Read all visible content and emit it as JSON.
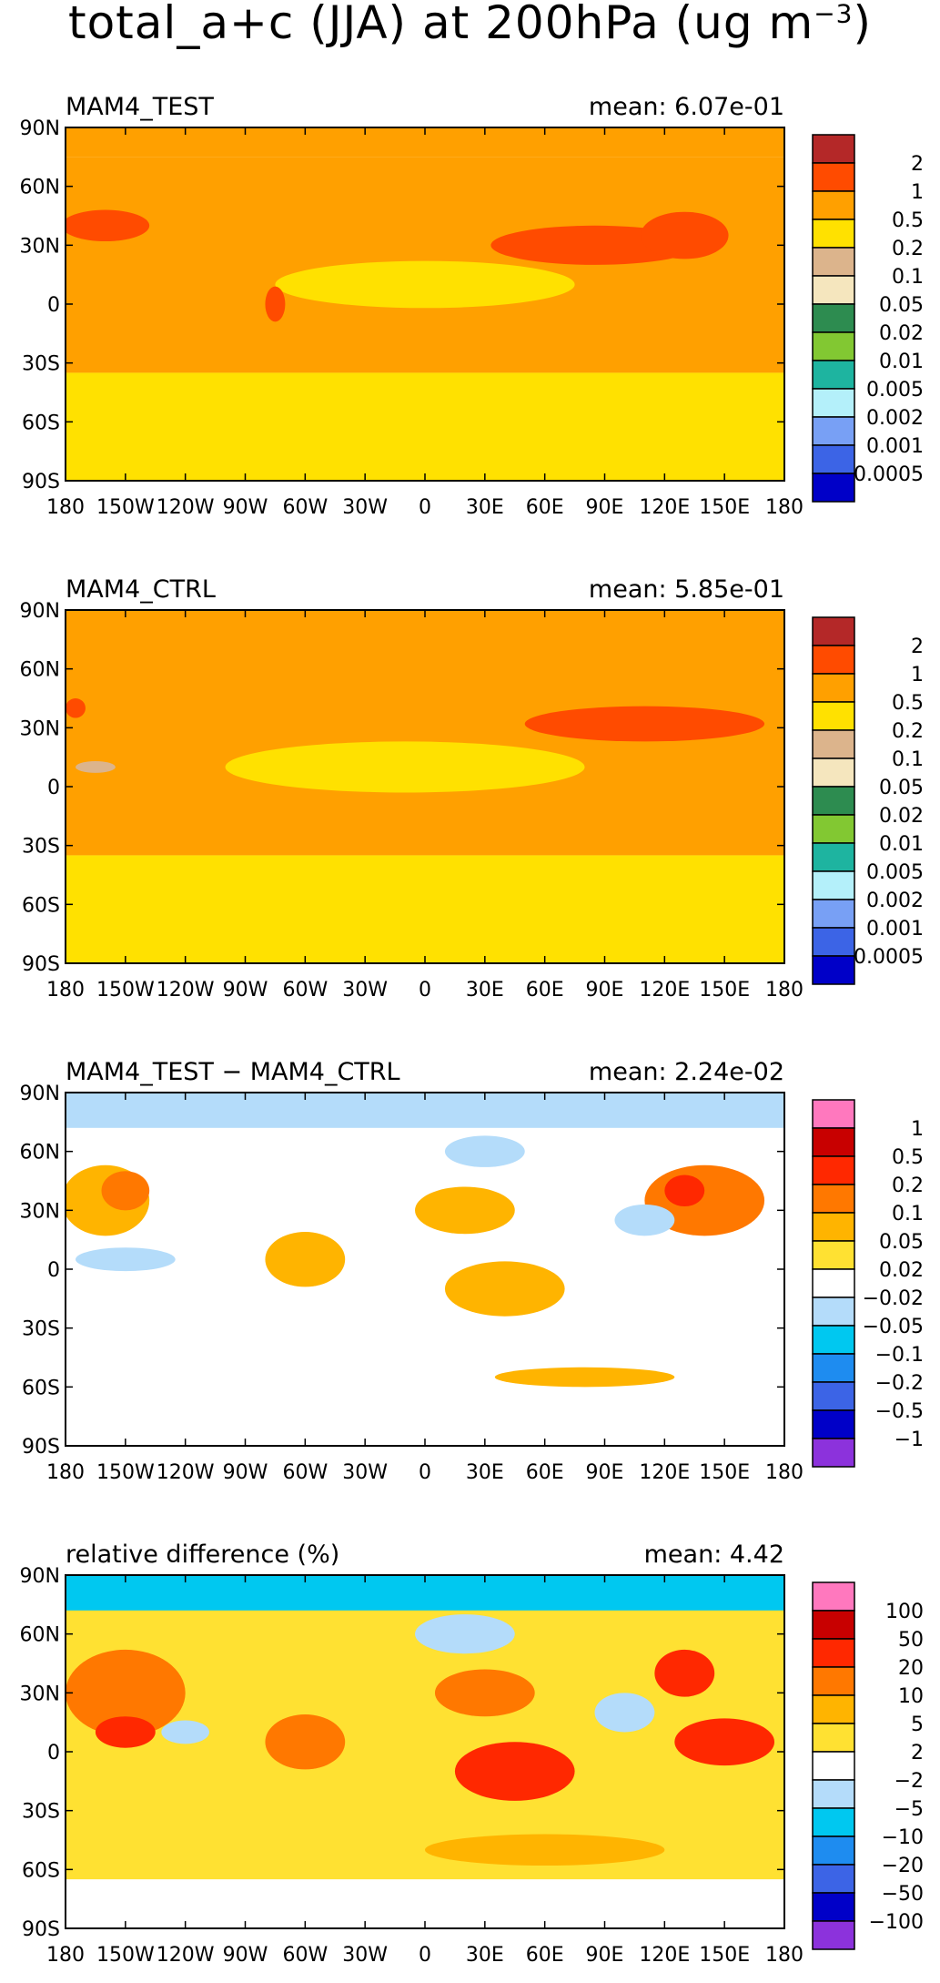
{
  "figure": {
    "title_main": "total_a+c (JJA) at 200hPa (ug m",
    "title_exp": "−3",
    "title_close": ")"
  },
  "colors": {
    "abs": [
      "#0000c8",
      "#3c64e6",
      "#78a0f5",
      "#b4f0fa",
      "#1eb4a0",
      "#82c832",
      "#2d8c50",
      "#f5e6be",
      "#dcb48c",
      "#ffe100",
      "#ffa000",
      "#ff4b00",
      "#b42828"
    ],
    "diff": [
      "#8c32dc",
      "#0000c8",
      "#3c64e6",
      "#1e8cf0",
      "#00c8f0",
      "#b4dcfa",
      "#ffffff",
      "#ffe132",
      "#ffb400",
      "#ff7800",
      "#ff2800",
      "#c80000",
      "#ff78be"
    ]
  },
  "chart_data": [
    {
      "type": "heatmap",
      "left_title": "MAM4_TEST",
      "right_title": "mean: 6.07e-01",
      "x_ticks": [
        "180",
        "150W",
        "120W",
        "90W",
        "60W",
        "30W",
        "0",
        "30E",
        "60E",
        "90E",
        "120E",
        "150E",
        "180"
      ],
      "y_ticks": [
        "90N",
        "60N",
        "30N",
        "0",
        "30S",
        "60S",
        "90S"
      ],
      "xlim": [
        -180,
        180
      ],
      "ylim": [
        -90,
        90
      ],
      "levels": [
        "2",
        "1",
        "0.5",
        "0.2",
        "0.1",
        "0.05",
        "0.02",
        "0.01",
        "0.005",
        "0.002",
        "0.001",
        "0.0005"
      ],
      "palette": "abs",
      "bands": [
        {
          "lat": [
            75,
            90
          ],
          "level": "0.5"
        },
        {
          "lat": [
            -35,
            75
          ],
          "level": "0.5"
        },
        {
          "lat": [
            -90,
            -35
          ],
          "level": "0.2"
        }
      ],
      "features": [
        {
          "lon": 0,
          "lat": 10,
          "rx": 75,
          "ry": 12,
          "level": "0.2"
        },
        {
          "lon": -160,
          "lat": 40,
          "rx": 22,
          "ry": 8,
          "level": "1"
        },
        {
          "lon": 85,
          "lat": 30,
          "rx": 52,
          "ry": 10,
          "level": "1"
        },
        {
          "lon": 130,
          "lat": 35,
          "rx": 22,
          "ry": 12,
          "level": "1"
        },
        {
          "lon": -75,
          "lat": 0,
          "rx": 5,
          "ry": 9,
          "level": "1"
        }
      ]
    },
    {
      "type": "heatmap",
      "left_title": "MAM4_CTRL",
      "right_title": "mean: 5.85e-01",
      "x_ticks": [
        "180",
        "150W",
        "120W",
        "90W",
        "60W",
        "30W",
        "0",
        "30E",
        "60E",
        "90E",
        "120E",
        "150E",
        "180"
      ],
      "y_ticks": [
        "90N",
        "60N",
        "30N",
        "0",
        "30S",
        "60S",
        "90S"
      ],
      "xlim": [
        -180,
        180
      ],
      "ylim": [
        -90,
        90
      ],
      "levels": [
        "2",
        "1",
        "0.5",
        "0.2",
        "0.1",
        "0.05",
        "0.02",
        "0.01",
        "0.005",
        "0.002",
        "0.001",
        "0.0005"
      ],
      "palette": "abs",
      "bands": [
        {
          "lat": [
            -35,
            90
          ],
          "level": "0.5"
        },
        {
          "lat": [
            -90,
            -35
          ],
          "level": "0.2"
        }
      ],
      "features": [
        {
          "lon": -10,
          "lat": 10,
          "rx": 90,
          "ry": 13,
          "level": "0.2"
        },
        {
          "lon": 110,
          "lat": 32,
          "rx": 60,
          "ry": 9,
          "level": "1"
        },
        {
          "lon": -175,
          "lat": 40,
          "rx": 5,
          "ry": 5,
          "level": "1"
        },
        {
          "lon": -165,
          "lat": 10,
          "rx": 10,
          "ry": 3,
          "level": "0.1"
        }
      ]
    },
    {
      "type": "heatmap",
      "left_title": "MAM4_TEST − MAM4_CTRL",
      "right_title": "mean: 2.24e-02",
      "x_ticks": [
        "180",
        "150W",
        "120W",
        "90W",
        "60W",
        "30W",
        "0",
        "30E",
        "60E",
        "90E",
        "120E",
        "150E",
        "180"
      ],
      "y_ticks": [
        "90N",
        "60N",
        "30N",
        "0",
        "30S",
        "60S",
        "90S"
      ],
      "xlim": [
        -180,
        180
      ],
      "ylim": [
        -90,
        90
      ],
      "levels": [
        "1",
        "0.5",
        "0.2",
        "0.1",
        "0.05",
        "0.02",
        "−0.02",
        "−0.05",
        "−0.1",
        "−0.2",
        "−0.5",
        "−1"
      ],
      "palette": "diff",
      "bands": [
        {
          "lat": [
            -90,
            90
          ],
          "level": "0"
        },
        {
          "lat": [
            72,
            90
          ],
          "level": "-0.05"
        }
      ],
      "features": [
        {
          "lon": -160,
          "lat": 35,
          "rx": 22,
          "ry": 18,
          "level": "0.05"
        },
        {
          "lon": -150,
          "lat": 40,
          "rx": 12,
          "ry": 10,
          "level": "0.1"
        },
        {
          "lon": 20,
          "lat": 30,
          "rx": 25,
          "ry": 12,
          "level": "0.05"
        },
        {
          "lon": 140,
          "lat": 35,
          "rx": 30,
          "ry": 18,
          "level": "0.1"
        },
        {
          "lon": 130,
          "lat": 40,
          "rx": 10,
          "ry": 8,
          "level": "0.2"
        },
        {
          "lon": -60,
          "lat": 5,
          "rx": 20,
          "ry": 14,
          "level": "0.05"
        },
        {
          "lon": 40,
          "lat": -10,
          "rx": 30,
          "ry": 14,
          "level": "0.05"
        },
        {
          "lon": 110,
          "lat": 25,
          "rx": 15,
          "ry": 8,
          "level": "-0.05"
        },
        {
          "lon": 30,
          "lat": 60,
          "rx": 20,
          "ry": 8,
          "level": "-0.05"
        },
        {
          "lon": -150,
          "lat": 5,
          "rx": 25,
          "ry": 6,
          "level": "-0.02"
        },
        {
          "lon": 80,
          "lat": -55,
          "rx": 45,
          "ry": 5,
          "level": "0.05"
        }
      ]
    },
    {
      "type": "heatmap",
      "left_title": "relative difference (%)",
      "right_title": "mean:  4.42",
      "x_ticks": [
        "180",
        "150W",
        "120W",
        "90W",
        "60W",
        "30W",
        "0",
        "30E",
        "60E",
        "90E",
        "120E",
        "150E",
        "180"
      ],
      "y_ticks": [
        "90N",
        "60N",
        "30N",
        "0",
        "30S",
        "60S",
        "90S"
      ],
      "xlim": [
        -180,
        180
      ],
      "ylim": [
        -90,
        90
      ],
      "levels": [
        "100",
        "50",
        "20",
        "10",
        "5",
        "2",
        "−2",
        "−5",
        "−10",
        "−20",
        "−50",
        "−100"
      ],
      "palette": "diff",
      "bands": [
        {
          "lat": [
            -90,
            90
          ],
          "level": "2"
        },
        {
          "lat": [
            72,
            90
          ],
          "level": "-10"
        },
        {
          "lat": [
            -90,
            -65
          ],
          "level": "0"
        }
      ],
      "features": [
        {
          "lon": -150,
          "lat": 30,
          "rx": 30,
          "ry": 22,
          "level": "10"
        },
        {
          "lon": -150,
          "lat": 10,
          "rx": 15,
          "ry": 8,
          "level": "20"
        },
        {
          "lon": 45,
          "lat": -10,
          "rx": 30,
          "ry": 15,
          "level": "20"
        },
        {
          "lon": 150,
          "lat": 5,
          "rx": 25,
          "ry": 12,
          "level": "20"
        },
        {
          "lon": 130,
          "lat": 40,
          "rx": 15,
          "ry": 12,
          "level": "20"
        },
        {
          "lon": 30,
          "lat": 30,
          "rx": 25,
          "ry": 12,
          "level": "10"
        },
        {
          "lon": -60,
          "lat": 5,
          "rx": 20,
          "ry": 14,
          "level": "10"
        },
        {
          "lon": 100,
          "lat": 20,
          "rx": 15,
          "ry": 10,
          "level": "-5"
        },
        {
          "lon": 20,
          "lat": 60,
          "rx": 25,
          "ry": 10,
          "level": "-5"
        },
        {
          "lon": 60,
          "lat": -50,
          "rx": 60,
          "ry": 8,
          "level": "5"
        },
        {
          "lon": -120,
          "lat": 10,
          "rx": 12,
          "ry": 6,
          "level": "-5"
        }
      ]
    }
  ]
}
